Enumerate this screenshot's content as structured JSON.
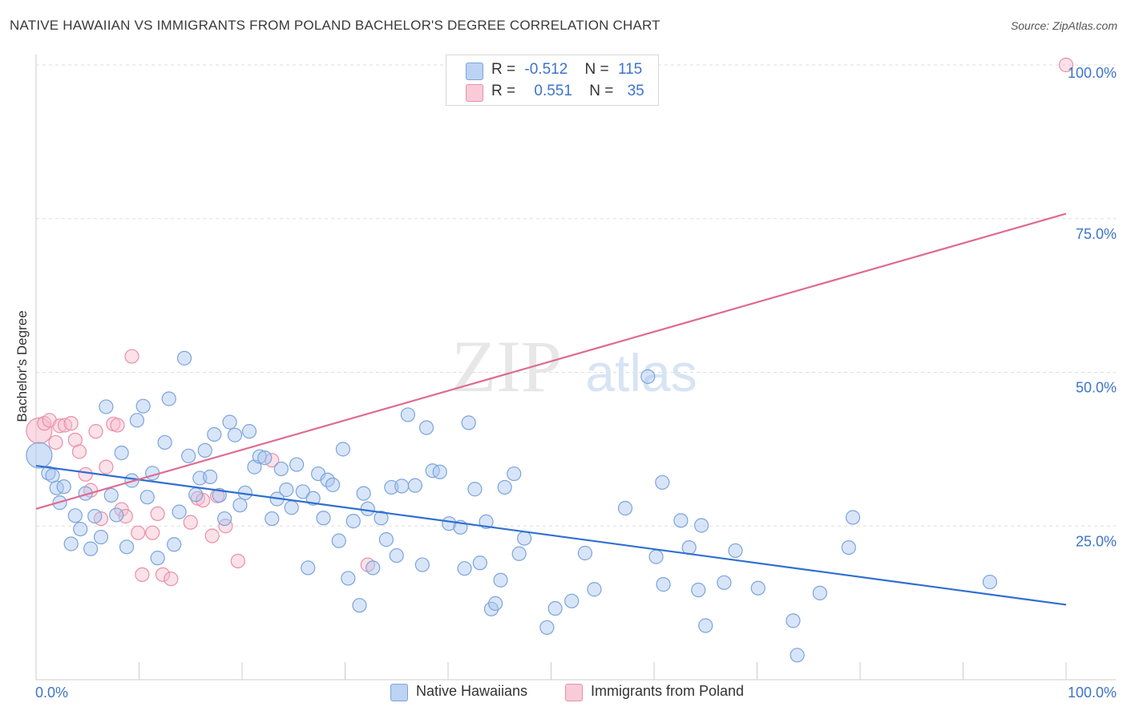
{
  "title": "NATIVE HAWAIIAN VS IMMIGRANTS FROM POLAND BACHELOR'S DEGREE CORRELATION CHART",
  "source": "Source: ZipAtlas.com",
  "watermark": {
    "zip": "ZIP",
    "atlas": "atlas"
  },
  "colors": {
    "blue_fill": "#a9c6ef",
    "blue_stroke": "#7ba4dc",
    "blue_line": "#2f6fd0",
    "pink_fill": "#f6bccd",
    "pink_stroke": "#e98fab",
    "pink_line": "#e06a92",
    "axis_text": "#3d74c9",
    "grid": "#dddddd"
  },
  "legend": {
    "rows": [
      {
        "r_label": "R =",
        "r_value": "-0.512",
        "n_label": "N =",
        "n_value": "115",
        "color": "blue"
      },
      {
        "r_label": "R =",
        "r_value": "0.551",
        "n_label": "N =",
        "n_value": "35",
        "color": "pink"
      }
    ]
  },
  "chart_data": {
    "type": "scatter",
    "title": "NATIVE HAWAIIAN VS IMMIGRANTS FROM POLAND BACHELOR'S DEGREE CORRELATION CHART",
    "xlabel": "",
    "ylabel": "Bachelor's Degree",
    "xlim": [
      0,
      100
    ],
    "ylim": [
      0,
      102
    ],
    "x_tick_labels": [
      "0.0%",
      "100.0%"
    ],
    "y_ticks": [
      25,
      50,
      75,
      100
    ],
    "y_tick_labels": [
      "25.0%",
      "50.0%",
      "75.0%",
      "100.0%"
    ],
    "grid": true,
    "legend_position": "top-center",
    "series": [
      {
        "name": "Native Hawaiians",
        "color": "blue",
        "trend": {
          "x": [
            0,
            100
          ],
          "y": [
            34.8,
            12.2
          ]
        },
        "points": [
          [
            0.3,
            36.5,
            "big"
          ],
          [
            1.2,
            33.6
          ],
          [
            1.6,
            33.2
          ],
          [
            2.0,
            31.2
          ],
          [
            2.3,
            28.8
          ],
          [
            2.7,
            31.4
          ],
          [
            3.4,
            22.1
          ],
          [
            3.8,
            26.7
          ],
          [
            4.3,
            24.5
          ],
          [
            4.8,
            30.3
          ],
          [
            5.3,
            21.3
          ],
          [
            5.7,
            26.6
          ],
          [
            6.3,
            23.2
          ],
          [
            6.8,
            44.4
          ],
          [
            7.3,
            30.0
          ],
          [
            7.8,
            26.8
          ],
          [
            8.3,
            36.9
          ],
          [
            8.8,
            21.6
          ],
          [
            9.3,
            32.4
          ],
          [
            9.8,
            42.2
          ],
          [
            10.4,
            44.5
          ],
          [
            10.8,
            29.7
          ],
          [
            11.3,
            33.6
          ],
          [
            11.8,
            19.8
          ],
          [
            12.5,
            38.6
          ],
          [
            12.9,
            45.7
          ],
          [
            13.4,
            22.0
          ],
          [
            13.9,
            27.3
          ],
          [
            14.4,
            52.3
          ],
          [
            14.8,
            36.4
          ],
          [
            15.5,
            30.1
          ],
          [
            15.9,
            32.8
          ],
          [
            16.4,
            37.3
          ],
          [
            16.9,
            33.0
          ],
          [
            17.3,
            39.9
          ],
          [
            17.8,
            30.0
          ],
          [
            18.3,
            26.2
          ],
          [
            18.8,
            41.9
          ],
          [
            19.3,
            39.8
          ],
          [
            19.8,
            28.4
          ],
          [
            20.3,
            30.4
          ],
          [
            20.7,
            40.4
          ],
          [
            21.2,
            34.6
          ],
          [
            21.7,
            36.3
          ],
          [
            22.2,
            36.1
          ],
          [
            22.9,
            26.2
          ],
          [
            23.4,
            29.4
          ],
          [
            23.8,
            34.3
          ],
          [
            24.3,
            30.9
          ],
          [
            24.8,
            28.0
          ],
          [
            25.3,
            35.0
          ],
          [
            25.9,
            30.6
          ],
          [
            26.4,
            18.2
          ],
          [
            26.9,
            29.5
          ],
          [
            27.4,
            33.5
          ],
          [
            27.9,
            26.3
          ],
          [
            28.3,
            32.5
          ],
          [
            28.8,
            31.7
          ],
          [
            29.4,
            22.6
          ],
          [
            29.8,
            37.5
          ],
          [
            30.3,
            16.5
          ],
          [
            30.8,
            25.8
          ],
          [
            31.4,
            12.1
          ],
          [
            31.8,
            30.3
          ],
          [
            32.2,
            27.8
          ],
          [
            32.7,
            18.2
          ],
          [
            33.5,
            26.3
          ],
          [
            34.0,
            22.8
          ],
          [
            34.5,
            31.3
          ],
          [
            35.0,
            20.2
          ],
          [
            35.5,
            31.5
          ],
          [
            36.1,
            43.1
          ],
          [
            36.8,
            31.6
          ],
          [
            37.5,
            18.7
          ],
          [
            37.9,
            41.0
          ],
          [
            38.5,
            34.0
          ],
          [
            39.2,
            33.8
          ],
          [
            40.1,
            25.4
          ],
          [
            41.2,
            24.8
          ],
          [
            41.6,
            18.1
          ],
          [
            42.0,
            41.8
          ],
          [
            42.6,
            31.0
          ],
          [
            43.1,
            19.0
          ],
          [
            43.7,
            25.7
          ],
          [
            44.2,
            11.5
          ],
          [
            44.6,
            12.4
          ],
          [
            45.1,
            16.2
          ],
          [
            45.5,
            31.3
          ],
          [
            46.4,
            33.5
          ],
          [
            46.9,
            20.5
          ],
          [
            47.4,
            23.0
          ],
          [
            49.6,
            8.5
          ],
          [
            50.4,
            11.6
          ],
          [
            52.0,
            12.8
          ],
          [
            53.3,
            20.6
          ],
          [
            54.2,
            14.7
          ],
          [
            57.2,
            27.9
          ],
          [
            59.4,
            49.3
          ],
          [
            60.2,
            20.0
          ],
          [
            60.8,
            32.1
          ],
          [
            60.9,
            15.5
          ],
          [
            62.6,
            25.9
          ],
          [
            63.4,
            21.5
          ],
          [
            64.3,
            14.6
          ],
          [
            64.6,
            25.1
          ],
          [
            65.0,
            8.8
          ],
          [
            66.8,
            15.8
          ],
          [
            67.9,
            21.0
          ],
          [
            70.1,
            14.9
          ],
          [
            73.5,
            9.6
          ],
          [
            73.9,
            4.0
          ],
          [
            76.1,
            14.1
          ],
          [
            78.9,
            21.5
          ],
          [
            79.3,
            26.4
          ],
          [
            92.6,
            15.9
          ]
        ]
      },
      {
        "name": "Immigrants from Poland",
        "color": "pink",
        "trend": {
          "x": [
            0,
            100
          ],
          "y": [
            27.8,
            75.8
          ]
        },
        "points": [
          [
            0.3,
            40.5,
            "big"
          ],
          [
            0.8,
            41.7
          ],
          [
            1.3,
            42.2
          ],
          [
            1.9,
            38.6
          ],
          [
            2.3,
            41.3
          ],
          [
            2.8,
            41.4
          ],
          [
            3.4,
            41.7
          ],
          [
            3.8,
            39.0
          ],
          [
            4.2,
            37.1
          ],
          [
            4.8,
            33.4
          ],
          [
            5.3,
            30.8
          ],
          [
            5.8,
            40.4
          ],
          [
            6.3,
            26.2
          ],
          [
            6.8,
            34.6
          ],
          [
            7.5,
            41.6
          ],
          [
            7.9,
            41.4
          ],
          [
            8.3,
            27.7
          ],
          [
            8.7,
            26.6
          ],
          [
            9.3,
            52.6
          ],
          [
            9.9,
            23.9
          ],
          [
            10.3,
            17.1
          ],
          [
            11.3,
            23.9
          ],
          [
            11.8,
            27.0
          ],
          [
            12.3,
            17.1
          ],
          [
            13.1,
            16.4
          ],
          [
            15.0,
            25.6
          ],
          [
            15.7,
            29.5
          ],
          [
            16.2,
            29.2
          ],
          [
            17.1,
            23.4
          ],
          [
            17.6,
            29.9
          ],
          [
            18.4,
            25.0
          ],
          [
            19.6,
            19.3
          ],
          [
            22.9,
            35.7
          ],
          [
            32.2,
            18.7
          ],
          [
            100.0,
            100.0
          ]
        ]
      }
    ]
  }
}
